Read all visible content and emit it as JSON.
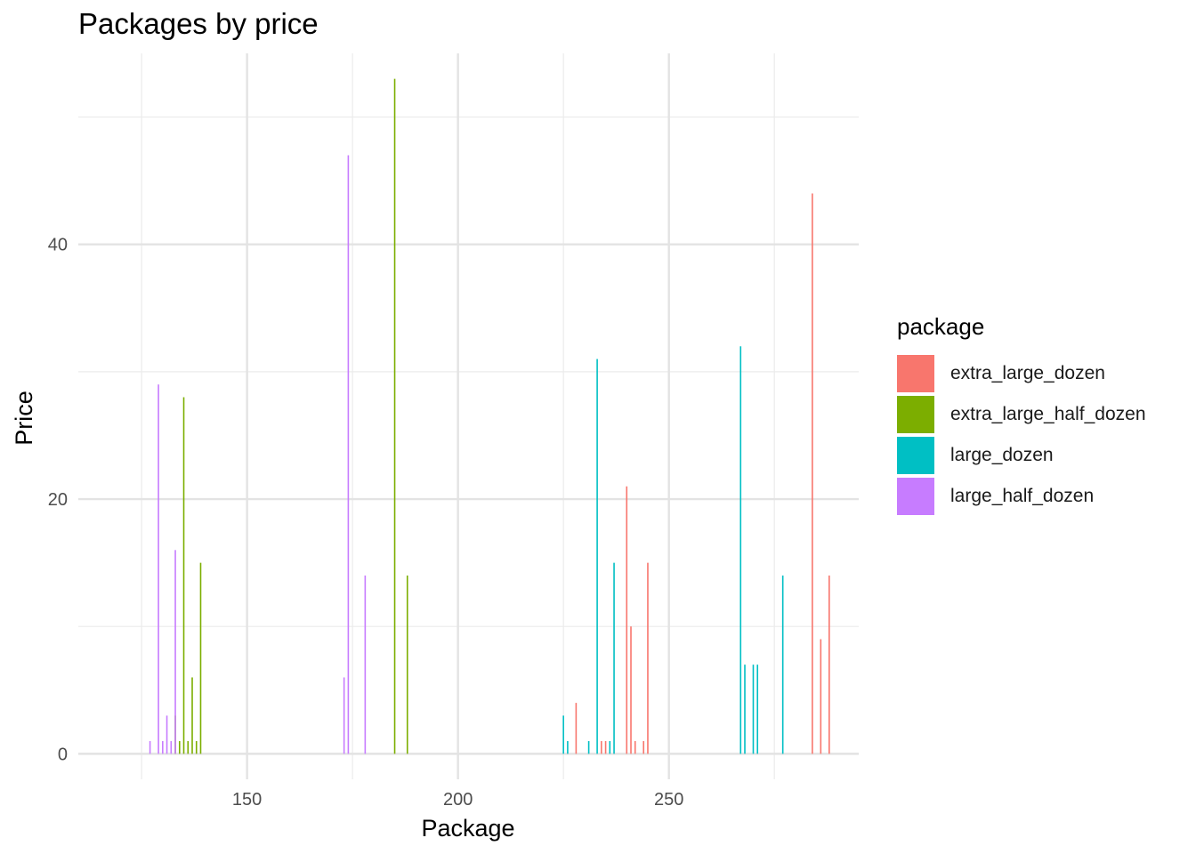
{
  "chart_data": {
    "type": "bar",
    "title": "Packages by price",
    "xlabel": "Package",
    "ylabel": "Price",
    "xlim": [
      110,
      295
    ],
    "ylim": [
      -2,
      55
    ],
    "x_ticks": [
      150,
      200,
      250
    ],
    "y_ticks": [
      0,
      20,
      40
    ],
    "grid": true,
    "legend_title": "package",
    "legend_position": "right",
    "series": [
      {
        "name": "extra_large_dozen",
        "color": "#F8766D",
        "points": [
          {
            "x": 228,
            "y": 4
          },
          {
            "x": 234,
            "y": 1
          },
          {
            "x": 235,
            "y": 1
          },
          {
            "x": 240,
            "y": 21
          },
          {
            "x": 241,
            "y": 10
          },
          {
            "x": 242,
            "y": 1
          },
          {
            "x": 244,
            "y": 1
          },
          {
            "x": 245,
            "y": 15
          },
          {
            "x": 284,
            "y": 44
          },
          {
            "x": 286,
            "y": 9
          },
          {
            "x": 288,
            "y": 14
          }
        ]
      },
      {
        "name": "extra_large_half_dozen",
        "color": "#7CAE00",
        "points": [
          {
            "x": 133,
            "y": 3
          },
          {
            "x": 134,
            "y": 1
          },
          {
            "x": 135,
            "y": 28
          },
          {
            "x": 136,
            "y": 1
          },
          {
            "x": 137,
            "y": 6
          },
          {
            "x": 138,
            "y": 1
          },
          {
            "x": 139,
            "y": 15
          },
          {
            "x": 185,
            "y": 53
          },
          {
            "x": 188,
            "y": 14
          }
        ]
      },
      {
        "name": "large_dozen",
        "color": "#00BFC4",
        "points": [
          {
            "x": 225,
            "y": 3
          },
          {
            "x": 226,
            "y": 1
          },
          {
            "x": 231,
            "y": 1
          },
          {
            "x": 233,
            "y": 31
          },
          {
            "x": 236,
            "y": 1
          },
          {
            "x": 237,
            "y": 15
          },
          {
            "x": 267,
            "y": 32
          },
          {
            "x": 268,
            "y": 7
          },
          {
            "x": 270,
            "y": 7
          },
          {
            "x": 271,
            "y": 7
          },
          {
            "x": 277,
            "y": 14
          }
        ]
      },
      {
        "name": "large_half_dozen",
        "color": "#C77CFF",
        "points": [
          {
            "x": 127,
            "y": 1
          },
          {
            "x": 129,
            "y": 29
          },
          {
            "x": 130,
            "y": 1
          },
          {
            "x": 131,
            "y": 3
          },
          {
            "x": 132,
            "y": 1
          },
          {
            "x": 133,
            "y": 16
          },
          {
            "x": 173,
            "y": 6
          },
          {
            "x": 174,
            "y": 47
          },
          {
            "x": 178,
            "y": 14
          }
        ]
      }
    ]
  }
}
